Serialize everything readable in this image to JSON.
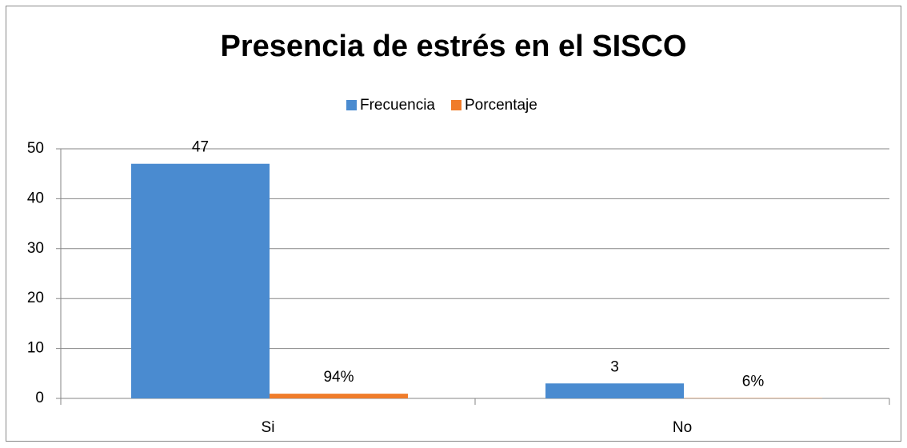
{
  "chart_data": {
    "type": "bar",
    "title": "Presencia de estrés en el SISCO",
    "categories": [
      "Si",
      "No"
    ],
    "series": [
      {
        "name": "Frecuencia",
        "color": "#4a8bd0",
        "values": [
          47,
          3
        ]
      },
      {
        "name": "Porcentaje",
        "color": "#f07c2a",
        "values": [
          0.94,
          0.06
        ],
        "value_labels": [
          "94%",
          "6%"
        ]
      }
    ],
    "ylim": [
      0,
      50
    ],
    "yticks": [
      0,
      10,
      20,
      30,
      40,
      50
    ],
    "grid": true,
    "legend": "top"
  }
}
